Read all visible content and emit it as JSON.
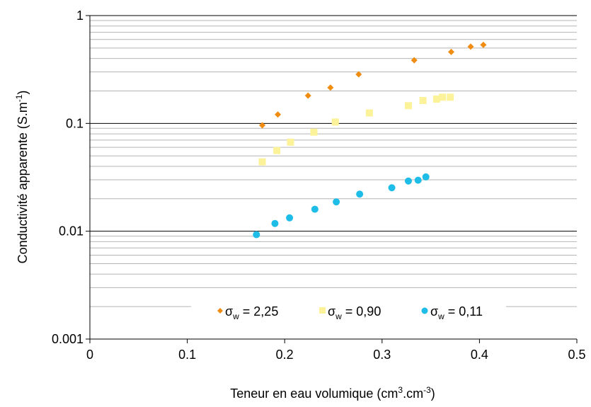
{
  "chart_data": {
    "type": "scatter",
    "title": "",
    "xlabel": "Teneur en eau volumique (cm3.cm-3)",
    "ylabel": "Conductivité apparente (S.m-1)",
    "x_tick_labels": [
      "0",
      "0.1",
      "0.2",
      "0.3",
      "0.4",
      "0.5"
    ],
    "y_tick_labels": [
      "0.001",
      "0.01",
      "0.1",
      "1"
    ],
    "xlim": [
      0,
      0.5
    ],
    "ylim": [
      0.001,
      1
    ],
    "y_scale": "log",
    "grid": "horizontal major and minor gridlines",
    "legend_placement": "lower-right",
    "series": [
      {
        "name": "σw = 2,25",
        "marker": "diamond",
        "color": "#F08C0F",
        "points": [
          [
            0.177,
            0.096
          ],
          [
            0.193,
            0.121
          ],
          [
            0.224,
            0.181
          ],
          [
            0.247,
            0.215
          ],
          [
            0.276,
            0.285
          ],
          [
            0.333,
            0.385
          ],
          [
            0.371,
            0.46
          ],
          [
            0.391,
            0.515
          ],
          [
            0.404,
            0.535
          ]
        ]
      },
      {
        "name": "σw = 0,90",
        "marker": "square",
        "color": "#FBF29A",
        "points": [
          [
            0.177,
            0.044
          ],
          [
            0.192,
            0.056
          ],
          [
            0.206,
            0.067
          ],
          [
            0.23,
            0.083
          ],
          [
            0.252,
            0.103
          ],
          [
            0.287,
            0.125
          ],
          [
            0.327,
            0.146
          ],
          [
            0.342,
            0.163
          ],
          [
            0.356,
            0.168
          ],
          [
            0.362,
            0.175
          ],
          [
            0.37,
            0.175
          ]
        ]
      },
      {
        "name": "σw = 0,11",
        "marker": "circle",
        "color": "#1EBDE8",
        "points": [
          [
            0.171,
            0.0093
          ],
          [
            0.19,
            0.0118
          ],
          [
            0.205,
            0.0133
          ],
          [
            0.231,
            0.016
          ],
          [
            0.253,
            0.0187
          ],
          [
            0.277,
            0.0221
          ],
          [
            0.31,
            0.0253
          ],
          [
            0.327,
            0.0292
          ],
          [
            0.337,
            0.0297
          ],
          [
            0.345,
            0.0319
          ]
        ]
      }
    ]
  },
  "labels": {
    "ylabel_main": "Conductivité apparente (S.m",
    "ylabel_sup": "-1",
    "ylabel_end": ")",
    "xlabel_main": "Teneur en eau volumique (cm",
    "xlabel_sup1": "3",
    "xlabel_mid": ".cm",
    "xlabel_sup2": "-3",
    "xlabel_end": ")",
    "legend_sigma": "σ",
    "legend_sub": "w",
    "legend_value_1": " = 2,25",
    "legend_value_2": " = 0,90",
    "legend_value_3": " = 0,11"
  }
}
